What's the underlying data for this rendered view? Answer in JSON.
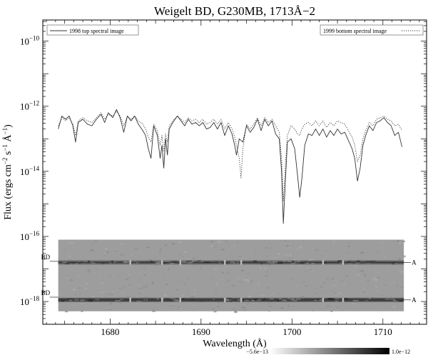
{
  "chart_data": {
    "type": "line",
    "title": "Weigelt BD, G230MB, 1713Å−2",
    "xlabel": "Wavelength (Å)",
    "ylabel_parts": {
      "lead": "Flux (ergs cm",
      "exp_cm": "−2",
      "s": " s",
      "exp_s": "−1",
      "A": " Å",
      "exp_A": "−1",
      "close": ")"
    },
    "xlim": [
      1672.6,
      1714.8
    ],
    "ylim_log10": [
      -18.7,
      -9.35
    ],
    "y_scale": "log",
    "x_ticks": [
      {
        "value": 1680,
        "label": "1680"
      },
      {
        "value": 1690,
        "label": "1690"
      },
      {
        "value": 1700,
        "label": "1700"
      },
      {
        "value": 1710,
        "label": "1710"
      }
    ],
    "y_ticks": [
      {
        "log10": -10,
        "base": "10",
        "exp": "−10"
      },
      {
        "log10": -12,
        "base": "10",
        "exp": "−12"
      },
      {
        "log10": -14,
        "base": "10",
        "exp": "−14"
      },
      {
        "log10": -16,
        "base": "10",
        "exp": "−16"
      },
      {
        "log10": -18,
        "base": "10",
        "exp": "−18"
      }
    ],
    "series": [
      {
        "name": "1998 top spectral image",
        "style": "solid",
        "color": "#333333",
        "points": [
          [
            1674.3,
            -12.7
          ],
          [
            1674.7,
            -12.3
          ],
          [
            1675.1,
            -12.4
          ],
          [
            1675.5,
            -12.3
          ],
          [
            1675.9,
            -12.6
          ],
          [
            1676.2,
            -13.1
          ],
          [
            1676.5,
            -12.5
          ],
          [
            1677.0,
            -12.4
          ],
          [
            1677.5,
            -12.55
          ],
          [
            1678.0,
            -12.6
          ],
          [
            1678.5,
            -12.4
          ],
          [
            1679.0,
            -12.25
          ],
          [
            1679.4,
            -12.5
          ],
          [
            1679.8,
            -12.2
          ],
          [
            1680.3,
            -12.35
          ],
          [
            1680.7,
            -12.1
          ],
          [
            1681.1,
            -12.35
          ],
          [
            1681.5,
            -12.8
          ],
          [
            1681.9,
            -12.3
          ],
          [
            1682.3,
            -12.45
          ],
          [
            1682.7,
            -12.3
          ],
          [
            1683.1,
            -12.55
          ],
          [
            1683.6,
            -12.75
          ],
          [
            1683.9,
            -12.9
          ],
          [
            1684.2,
            -13.3
          ],
          [
            1684.5,
            -13.6
          ],
          [
            1684.8,
            -12.6
          ],
          [
            1685.2,
            -12.9
          ],
          [
            1685.5,
            -13.6
          ],
          [
            1685.7,
            -13.2
          ],
          [
            1685.9,
            -13.9
          ],
          [
            1686.1,
            -13.0
          ],
          [
            1686.3,
            -13.5
          ],
          [
            1686.5,
            -12.7
          ],
          [
            1686.9,
            -12.5
          ],
          [
            1687.4,
            -12.3
          ],
          [
            1687.8,
            -12.45
          ],
          [
            1688.2,
            -12.6
          ],
          [
            1688.6,
            -12.4
          ],
          [
            1689.0,
            -12.55
          ],
          [
            1689.4,
            -12.5
          ],
          [
            1689.8,
            -12.6
          ],
          [
            1690.2,
            -12.5
          ],
          [
            1690.6,
            -12.7
          ],
          [
            1691.0,
            -12.65
          ],
          [
            1691.4,
            -12.5
          ],
          [
            1691.8,
            -12.7
          ],
          [
            1692.2,
            -12.5
          ],
          [
            1692.6,
            -12.9
          ],
          [
            1693.0,
            -12.6
          ],
          [
            1693.4,
            -12.85
          ],
          [
            1693.7,
            -13.2
          ],
          [
            1693.9,
            -13.5
          ],
          [
            1694.2,
            -13.0
          ],
          [
            1694.6,
            -13.1
          ],
          [
            1695.0,
            -12.6
          ],
          [
            1695.4,
            -12.8
          ],
          [
            1695.8,
            -12.65
          ],
          [
            1696.2,
            -12.4
          ],
          [
            1696.6,
            -12.75
          ],
          [
            1697.0,
            -12.4
          ],
          [
            1697.4,
            -12.6
          ],
          [
            1697.8,
            -12.45
          ],
          [
            1698.2,
            -12.85
          ],
          [
            1698.6,
            -13.0
          ],
          [
            1698.85,
            -14.0
          ],
          [
            1699.05,
            -15.6
          ],
          [
            1699.25,
            -14.4
          ],
          [
            1699.5,
            -13.1
          ],
          [
            1699.9,
            -13.0
          ],
          [
            1700.3,
            -13.3
          ],
          [
            1700.6,
            -14.1
          ],
          [
            1700.85,
            -14.8
          ],
          [
            1701.1,
            -14.2
          ],
          [
            1701.4,
            -13.2
          ],
          [
            1701.8,
            -12.85
          ],
          [
            1702.2,
            -12.9
          ],
          [
            1702.6,
            -12.7
          ],
          [
            1703.0,
            -12.9
          ],
          [
            1703.4,
            -12.7
          ],
          [
            1703.8,
            -12.95
          ],
          [
            1704.2,
            -12.75
          ],
          [
            1704.6,
            -12.9
          ],
          [
            1705.0,
            -12.7
          ],
          [
            1705.4,
            -12.85
          ],
          [
            1705.8,
            -12.8
          ],
          [
            1706.2,
            -13.05
          ],
          [
            1706.6,
            -13.3
          ],
          [
            1706.9,
            -13.6
          ],
          [
            1707.2,
            -14.3
          ],
          [
            1707.5,
            -13.9
          ],
          [
            1707.8,
            -13.2
          ],
          [
            1708.1,
            -12.9
          ],
          [
            1708.5,
            -12.6
          ],
          [
            1708.9,
            -12.75
          ],
          [
            1709.3,
            -12.5
          ],
          [
            1709.7,
            -12.45
          ],
          [
            1710.1,
            -12.35
          ],
          [
            1710.5,
            -12.5
          ],
          [
            1710.9,
            -12.6
          ],
          [
            1711.3,
            -12.9
          ],
          [
            1711.7,
            -12.8
          ],
          [
            1712.1,
            -13.25
          ]
        ]
      },
      {
        "name": "1999 bottom spectral image",
        "style": "dotted",
        "color": "#333333",
        "points": [
          [
            1674.3,
            -12.6
          ],
          [
            1674.7,
            -12.35
          ],
          [
            1675.1,
            -12.45
          ],
          [
            1675.5,
            -12.35
          ],
          [
            1675.9,
            -12.55
          ],
          [
            1676.2,
            -12.9
          ],
          [
            1676.5,
            -12.45
          ],
          [
            1677.0,
            -12.35
          ],
          [
            1677.5,
            -12.45
          ],
          [
            1678.0,
            -12.5
          ],
          [
            1678.5,
            -12.35
          ],
          [
            1679.0,
            -12.2
          ],
          [
            1679.4,
            -12.4
          ],
          [
            1679.8,
            -12.25
          ],
          [
            1680.3,
            -12.3
          ],
          [
            1680.7,
            -12.15
          ],
          [
            1681.1,
            -12.3
          ],
          [
            1681.5,
            -12.6
          ],
          [
            1681.9,
            -12.3
          ],
          [
            1682.3,
            -12.4
          ],
          [
            1682.7,
            -12.3
          ],
          [
            1683.1,
            -12.45
          ],
          [
            1683.6,
            -12.55
          ],
          [
            1683.9,
            -12.7
          ],
          [
            1684.2,
            -12.95
          ],
          [
            1684.5,
            -13.1
          ],
          [
            1684.8,
            -12.55
          ],
          [
            1685.2,
            -12.75
          ],
          [
            1685.5,
            -13.2
          ],
          [
            1685.7,
            -12.9
          ],
          [
            1685.9,
            -13.4
          ],
          [
            1686.1,
            -12.85
          ],
          [
            1686.3,
            -13.1
          ],
          [
            1686.5,
            -12.6
          ],
          [
            1686.9,
            -12.45
          ],
          [
            1687.4,
            -12.3
          ],
          [
            1687.8,
            -12.4
          ],
          [
            1688.2,
            -12.5
          ],
          [
            1688.6,
            -12.35
          ],
          [
            1689.0,
            -12.45
          ],
          [
            1689.4,
            -12.4
          ],
          [
            1689.8,
            -12.5
          ],
          [
            1690.2,
            -12.4
          ],
          [
            1690.6,
            -12.55
          ],
          [
            1691.0,
            -12.5
          ],
          [
            1691.4,
            -12.4
          ],
          [
            1691.8,
            -12.55
          ],
          [
            1692.2,
            -12.4
          ],
          [
            1692.6,
            -12.7
          ],
          [
            1693.0,
            -12.5
          ],
          [
            1693.4,
            -12.7
          ],
          [
            1693.7,
            -12.95
          ],
          [
            1693.9,
            -13.2
          ],
          [
            1694.2,
            -13.6
          ],
          [
            1694.4,
            -14.2
          ],
          [
            1694.6,
            -13.3
          ],
          [
            1695.0,
            -12.55
          ],
          [
            1695.4,
            -12.7
          ],
          [
            1695.8,
            -12.55
          ],
          [
            1696.2,
            -12.35
          ],
          [
            1696.6,
            -12.6
          ],
          [
            1697.0,
            -12.35
          ],
          [
            1697.4,
            -12.5
          ],
          [
            1697.8,
            -12.4
          ],
          [
            1698.2,
            -12.6
          ],
          [
            1698.6,
            -12.8
          ],
          [
            1698.85,
            -13.6
          ],
          [
            1699.05,
            -14.9
          ],
          [
            1699.25,
            -13.9
          ],
          [
            1699.5,
            -12.9
          ],
          [
            1699.9,
            -12.6
          ],
          [
            1700.3,
            -12.7
          ],
          [
            1700.6,
            -12.85
          ],
          [
            1700.85,
            -12.9
          ],
          [
            1701.1,
            -12.7
          ],
          [
            1701.4,
            -12.55
          ],
          [
            1701.8,
            -12.5
          ],
          [
            1702.2,
            -12.6
          ],
          [
            1702.6,
            -12.45
          ],
          [
            1703.0,
            -12.6
          ],
          [
            1703.4,
            -12.45
          ],
          [
            1703.8,
            -12.65
          ],
          [
            1704.2,
            -12.5
          ],
          [
            1704.6,
            -12.6
          ],
          [
            1705.0,
            -12.45
          ],
          [
            1705.8,
            -12.55
          ],
          [
            1706.2,
            -12.75
          ],
          [
            1706.6,
            -12.95
          ],
          [
            1706.9,
            -13.2
          ],
          [
            1707.2,
            -13.7
          ],
          [
            1707.5,
            -13.5
          ],
          [
            1707.8,
            -13.0
          ],
          [
            1708.1,
            -12.75
          ],
          [
            1708.5,
            -12.5
          ],
          [
            1708.9,
            -12.6
          ],
          [
            1709.3,
            -12.4
          ],
          [
            1709.7,
            -12.35
          ],
          [
            1710.1,
            -12.3
          ],
          [
            1710.5,
            -12.4
          ],
          [
            1710.9,
            -12.45
          ],
          [
            1711.3,
            -12.6
          ],
          [
            1711.7,
            -12.55
          ],
          [
            1712.1,
            -12.75
          ]
        ]
      }
    ],
    "legend": {
      "left_entry": "1998 top spectral image",
      "right_entry": "1999 bottom spectral image",
      "placement": "top"
    },
    "spectral_image": {
      "x_range": [
        1674.3,
        1712.3
      ],
      "y_range_log10": [
        -18.3,
        -16.1
      ],
      "left_labels": [
        {
          "text": "BD",
          "log10": -16.7
        },
        {
          "text": "BD",
          "log10": -17.8
        }
      ],
      "right_labels": [
        {
          "text": "A",
          "log10": -16.8
        },
        {
          "text": "A",
          "log10": -17.95
        }
      ],
      "bands_log10": [
        -16.8,
        -17.95
      ],
      "bright_spots_x": [
        1682.2,
        1685.7,
        1687.7,
        1692.6,
        1694.4,
        1703.4,
        1705.6
      ]
    },
    "colorbar": {
      "min_label": "−5.6e−13",
      "max_label": "1.0e−12"
    },
    "grid": false
  }
}
